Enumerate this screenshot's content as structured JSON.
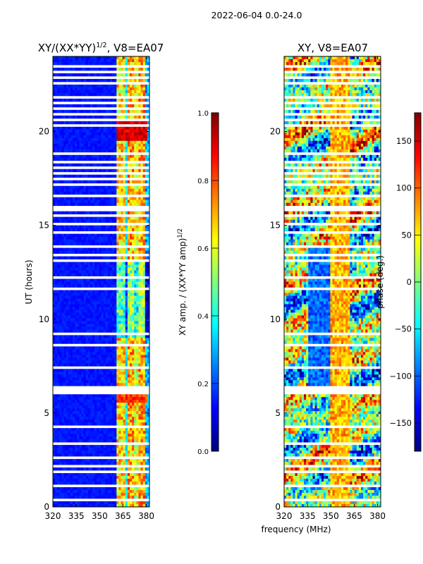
{
  "suptitle": "2022-06-04 0.0-24.0",
  "shared_xlabel": "frequency (MHz)",
  "chart_data": [
    {
      "type": "heatmap",
      "title_main": "XY/(XX*YY)",
      "title_exp": "1/2",
      "title_tail": ", V8=EA07",
      "xlabel": "",
      "ylabel": "UT (hours)",
      "xlim": [
        320,
        382
      ],
      "ylim": [
        0,
        24
      ],
      "x_ticks": [
        320,
        335,
        350,
        365,
        380
      ],
      "y_ticks": [
        0,
        5,
        10,
        15,
        20
      ],
      "colorbar": {
        "label_main": "XY amp. / (XX*YY amp)",
        "label_exp": "1/2",
        "range": [
          0.0,
          1.0
        ],
        "ticks": [
          0.0,
          0.2,
          0.4,
          0.6,
          0.8,
          1.0
        ],
        "tick_labels": [
          "0.0",
          "0.2",
          "0.4",
          "0.6",
          "0.8",
          "1.0"
        ],
        "colormap": "jet"
      }
    },
    {
      "type": "heatmap",
      "title_main": "XY, V8=EA07",
      "title_exp": "",
      "title_tail": "",
      "xlabel": "frequency (MHz)",
      "ylabel": "",
      "xlim": [
        320,
        382
      ],
      "ylim": [
        0,
        24
      ],
      "x_ticks": [
        320,
        335,
        350,
        365,
        380
      ],
      "y_ticks": [
        0,
        5,
        10,
        15,
        20
      ],
      "colorbar": {
        "label_main": "phase (deg.)",
        "label_exp": "",
        "range": [
          -180,
          180
        ],
        "ticks": [
          -150,
          -100,
          -50,
          0,
          50,
          100,
          150
        ],
        "tick_labels": [
          "−150",
          "−100",
          "−50",
          "0",
          "50",
          "100",
          "150"
        ],
        "colormap": "jet"
      }
    }
  ],
  "flagged_rows_ut": [
    0.15,
    0.35,
    0.9,
    1.1,
    1.5,
    1.85,
    2.2,
    2.6,
    3.0,
    3.35,
    3.6,
    4.25,
    4.5,
    6.1,
    6.2,
    6.35,
    6.9,
    7.4,
    7.95,
    8.4,
    8.6,
    8.85,
    9.2,
    9.45,
    9.75,
    10.2,
    11.6,
    12.2,
    12.6,
    13.1,
    13.4,
    13.9,
    14.1,
    14.25,
    14.6,
    15.1,
    15.3,
    15.5,
    15.8,
    16.0,
    16.35,
    16.6,
    17.1,
    17.2,
    17.5,
    17.8,
    18.1,
    18.4,
    18.6,
    18.85,
    19.05,
    20.1,
    20.3,
    20.6,
    20.9,
    21.25,
    21.3,
    21.5,
    21.8,
    22.05,
    22.35,
    22.6,
    22.9,
    23.15,
    23.5
  ]
}
